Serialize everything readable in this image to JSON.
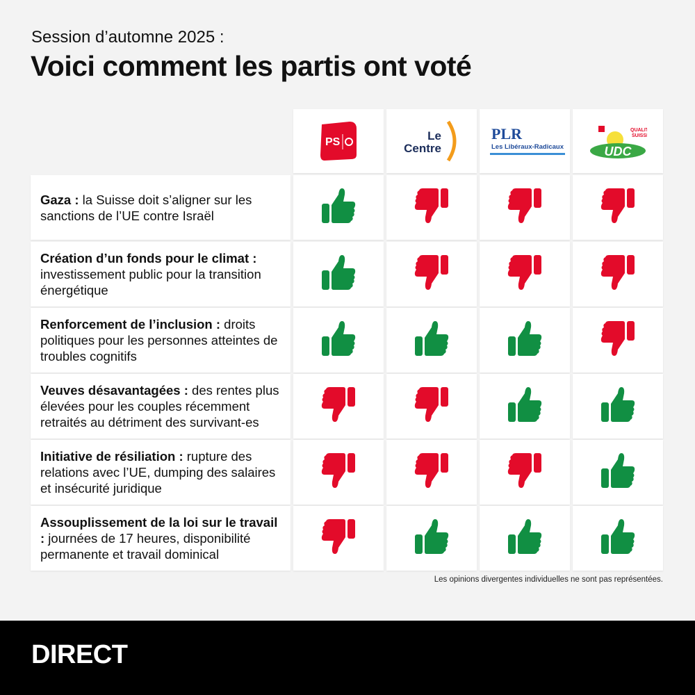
{
  "header": {
    "subtitle": "Session d’automne 2025 :",
    "title": "Voici comment les partis ont voté"
  },
  "parties": [
    {
      "id": "ps",
      "logo_text": "PS",
      "color": "#e30b2a"
    },
    {
      "id": "le-centre",
      "logo_text": "Le Centre",
      "color": "#1b2d5a",
      "accent": "#f39c1b"
    },
    {
      "id": "plr",
      "logo_text": "PLR",
      "logo_subtext": "Les Libéraux-Radicaux",
      "color": "#1f4b9a",
      "accent": "#3b8fd6"
    },
    {
      "id": "udc",
      "logo_text": "UDC",
      "logo_subtext": "QUALITÉ SUISSE",
      "color": "#139c3a"
    }
  ],
  "colors": {
    "yes": "#118f43",
    "no": "#e30b2a"
  },
  "rows": [
    {
      "bold": "Gaza :",
      "text": " la Suisse doit s’aligner sur les sanctions de l’UE contre Israël",
      "votes": [
        "yes",
        "no",
        "no",
        "no"
      ]
    },
    {
      "bold": "Création d’un fonds pour le climat :",
      "text": " investissement public pour la transition énergétique",
      "votes": [
        "yes",
        "no",
        "no",
        "no"
      ]
    },
    {
      "bold": "Renforcement de l’inclusion :",
      "text": " droits politiques pour les personnes atteintes de troubles cognitifs",
      "votes": [
        "yes",
        "yes",
        "yes",
        "no"
      ]
    },
    {
      "bold": "Veuves désavantagées :",
      "text": " des rentes plus élevées pour les couples récemment retraités au détriment des survivant-es",
      "votes": [
        "no",
        "no",
        "yes",
        "yes"
      ]
    },
    {
      "bold": "Initiative de résiliation :",
      "text": " rupture des relations avec l’UE, dumping des salaires et insécurité juridique",
      "votes": [
        "no",
        "no",
        "no",
        "yes"
      ]
    },
    {
      "bold": "Assouplissement de la loi sur le travail :",
      "text": " journées de 17 heures, disponibilité permanente et travail dominical",
      "votes": [
        "no",
        "yes",
        "yes",
        "yes"
      ]
    }
  ],
  "note": "Les opinions divergentes individuelles ne sont pas représentées.",
  "footer": {
    "brand": "DIRECT"
  }
}
